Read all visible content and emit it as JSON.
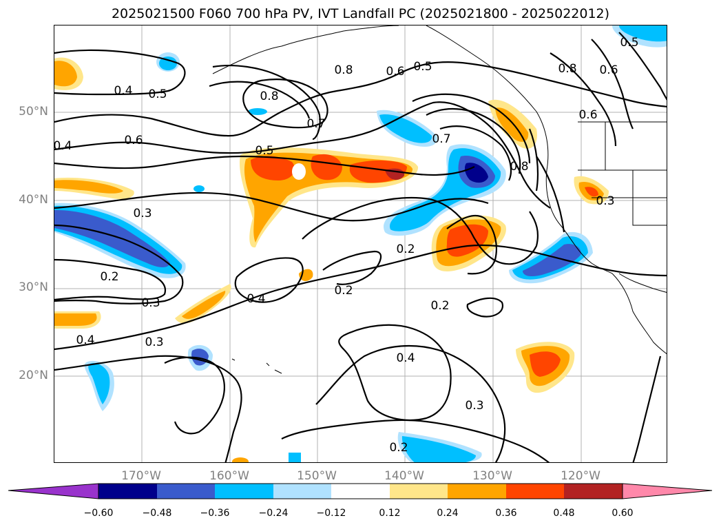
{
  "title": "2025021500 F060 700 hPa PV, IVT Landfall PC (2025021800 - 2025022012)",
  "lat_labels": [
    "50°N",
    "40°N",
    "30°N",
    "20°N"
  ],
  "lon_labels": [
    "170°W",
    "160°W",
    "150°W",
    "140°W",
    "130°W",
    "120°W"
  ],
  "colorbar": {
    "ticks": [
      "−0.60",
      "−0.48",
      "−0.36",
      "−0.24",
      "−0.12",
      "0.12",
      "0.24",
      "0.36",
      "0.48",
      "0.60"
    ],
    "colors": [
      "#9933cc",
      "#00008b",
      "#3a5bcc",
      "#00bfff",
      "#b0e2ff",
      "#ffffff",
      "#ffe68a",
      "#ffa500",
      "#ff4500",
      "#b22222",
      "#ff88aa"
    ]
  },
  "contour_labels": [
    "0.8",
    "0.6",
    "0.5",
    "0.8",
    "0.5",
    "0.4",
    "0.6",
    "0.4",
    "0.5",
    "0.8",
    "0.7",
    "0.7",
    "0.8",
    "0.5",
    "0.6",
    "0.6",
    "0.3",
    "0.2",
    "0.3",
    "0.2",
    "0.4",
    "0.2",
    "0.2",
    "0.3",
    "0.4",
    "0.3",
    "0.4",
    "0.3",
    "0.2"
  ]
}
